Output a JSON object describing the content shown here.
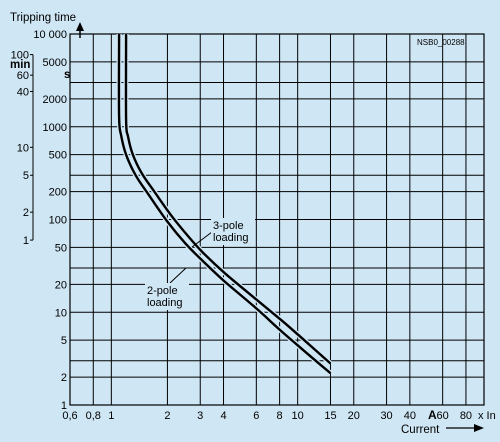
{
  "chart_data": {
    "type": "line",
    "code": "NSB0_00288",
    "y_title": "Tripping time",
    "x_title": "Current",
    "x_unit": "A",
    "x_unit_suffix": "x In",
    "y_unit_seconds": "s",
    "y_unit_minutes": "min",
    "x_scale": "log",
    "y_scale": "log",
    "xlim": [
      0.6,
      100
    ],
    "ylim": [
      1,
      10000
    ],
    "grid": true,
    "x_ticks": [
      {
        "v": 0.6,
        "label": "0,6"
      },
      {
        "v": 0.8,
        "label": "0,8"
      },
      {
        "v": 1,
        "label": "1"
      },
      {
        "v": 2,
        "label": "2"
      },
      {
        "v": 3,
        "label": "3"
      },
      {
        "v": 4,
        "label": "4"
      },
      {
        "v": 6,
        "label": "6"
      },
      {
        "v": 8,
        "label": "8"
      },
      {
        "v": 10,
        "label": "10"
      },
      {
        "v": 15,
        "label": "15"
      },
      {
        "v": 20,
        "label": "20"
      },
      {
        "v": 30,
        "label": "30"
      },
      {
        "v": 40,
        "label": "40"
      },
      {
        "v": 60,
        "label": "60"
      },
      {
        "v": 80,
        "label": "80"
      }
    ],
    "y_ticks": [
      {
        "v": 1,
        "label": "1"
      },
      {
        "v": 2,
        "label": "2"
      },
      {
        "v": 3,
        "label": ""
      },
      {
        "v": 5,
        "label": "5"
      },
      {
        "v": 10,
        "label": "10"
      },
      {
        "v": 20,
        "label": "20"
      },
      {
        "v": 30,
        "label": ""
      },
      {
        "v": 50,
        "label": "50"
      },
      {
        "v": 100,
        "label": "100"
      },
      {
        "v": 200,
        "label": "200"
      },
      {
        "v": 300,
        "label": ""
      },
      {
        "v": 500,
        "label": "500"
      },
      {
        "v": 1000,
        "label": "1000"
      },
      {
        "v": 2000,
        "label": "2000"
      },
      {
        "v": 3000,
        "label": ""
      },
      {
        "v": 5000,
        "label": "5000"
      },
      {
        "v": 10000,
        "label": "10 000"
      }
    ],
    "minute_ticks": [
      {
        "v": 60,
        "label": "1"
      },
      {
        "v": 120,
        "label": "2"
      },
      {
        "v": 300,
        "label": "5"
      },
      {
        "v": 600,
        "label": "10"
      },
      {
        "v": 2400,
        "label": "40"
      },
      {
        "v": 3600,
        "label": "60"
      },
      {
        "v": 6000,
        "label": "100"
      }
    ],
    "series": [
      {
        "name": "2-pole loading",
        "x": [
          1.1,
          1.1,
          1.13,
          1.2,
          1.35,
          1.6,
          2,
          2.5,
          3,
          4,
          6,
          8,
          10,
          15
        ],
        "y": [
          10000,
          1300,
          800,
          500,
          300,
          180,
          95,
          55,
          38,
          22,
          11,
          6.5,
          4.4,
          2.2
        ]
      },
      {
        "name": "3-pole loading",
        "x": [
          1.2,
          1.2,
          1.23,
          1.3,
          1.45,
          1.7,
          2.1,
          2.6,
          3.1,
          4.1,
          6.2,
          8.3,
          10.5,
          15
        ],
        "y": [
          10000,
          1200,
          780,
          510,
          320,
          200,
          110,
          65,
          44,
          26,
          13,
          8,
          5.3,
          2.8
        ]
      }
    ],
    "annotations": [
      {
        "lines": [
          "3-pole",
          "loading"
        ],
        "series": "3-pole loading"
      },
      {
        "lines": [
          "2-pole",
          "loading"
        ],
        "series": "2-pole loading"
      }
    ]
  }
}
